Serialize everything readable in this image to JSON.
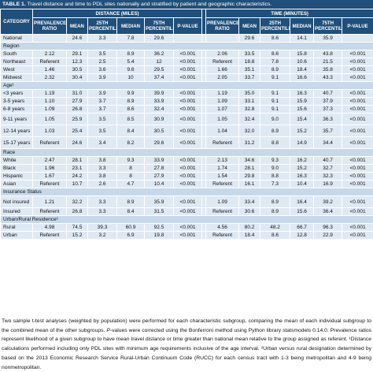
{
  "caption": {
    "label": "TABLE 1.",
    "text": " Travel distance and time to PDL sites nationally and stratified by patient and geographic characteristics."
  },
  "headers": {
    "category": "CATEGORY",
    "distance_group": "DISTANCE (MILES)",
    "time_group": "TIME (MINUTES)",
    "columns": [
      "PREVALENCE RATIO",
      "MEAN",
      "25TH PERCENTILE",
      "MEDIAN",
      "75TH PERCENTILE",
      "P-VALUE"
    ]
  },
  "rows": [
    {
      "type": "data",
      "label": "National",
      "d": [
        "",
        "24.6",
        "3.3",
        "7.8",
        "29.6",
        ""
      ],
      "t": [
        "",
        "29.6",
        "8.6",
        "14.1",
        "35.9",
        ""
      ]
    },
    {
      "type": "section",
      "label": "Region"
    },
    {
      "type": "data",
      "label": "South",
      "d": [
        "2.12",
        "29.1",
        "3.5",
        "8.9",
        "36.2",
        "<0.001"
      ],
      "t": [
        "2.06",
        "33.5",
        "8.6",
        "15.8",
        "43.8",
        "<0.001"
      ]
    },
    {
      "type": "data",
      "label": "Northeast",
      "d": [
        "Referent",
        "12.3",
        "2.5",
        "5.4",
        "12",
        "<0.001"
      ],
      "t": [
        "Referent",
        "18.8",
        "7.8",
        "10.6",
        "21.5",
        "<0.001"
      ]
    },
    {
      "type": "data",
      "label": "West",
      "d": [
        "1.46",
        "30.5",
        "3.6",
        "9.6",
        "29.5",
        "<0.001"
      ],
      "t": [
        "1.66",
        "35.1",
        "8.9",
        "18.4",
        "35.8",
        "<0.001"
      ]
    },
    {
      "type": "data",
      "label": "Midwest",
      "d": [
        "2.32",
        "30.4",
        "3.9",
        "10",
        "37.4",
        "<0.001"
      ],
      "t": [
        "2.05",
        "33.7",
        "9.1",
        "16.6",
        "43.3",
        "<0.001"
      ]
    },
    {
      "type": "section",
      "label": "Age¹"
    },
    {
      "type": "data",
      "label": "<3 years",
      "d": [
        "1.19",
        "31.0",
        "3.9",
        "9.9",
        "39.9",
        "<0.001"
      ],
      "t": [
        "1.19",
        "35.0",
        "9.1",
        "16.3",
        "40.7",
        "<0.001"
      ]
    },
    {
      "type": "data",
      "label": "3-5 years",
      "d": [
        "1.10",
        "27.9",
        "3.7",
        "8.9",
        "33.9",
        "<0.001"
      ],
      "t": [
        "1.09",
        "33.1",
        "9.1",
        "15.9",
        "37.9",
        "<0.001"
      ]
    },
    {
      "type": "data",
      "label": "6-8 years",
      "d": [
        "1.09",
        "26.8",
        "3.7",
        "8.6",
        "32.4",
        "<0.001"
      ],
      "t": [
        "1.07",
        "32.8",
        "9.1",
        "15.6",
        "37.3",
        "<0.001"
      ]
    },
    {
      "type": "data",
      "label": "9-11 years",
      "d": [
        "1.05",
        "25.9",
        "3.5",
        "8.5",
        "30.9",
        "<0.001"
      ],
      "t": [
        "1.05",
        "32.4",
        "9.0",
        "15.4",
        "36.3",
        "<0.001"
      ]
    },
    {
      "type": "data",
      "label": "12-14 years",
      "d": [
        "1.03",
        "25.4",
        "3.5",
        "8.4",
        "30.5",
        "<0.001"
      ],
      "t": [
        "1.04",
        "32.0",
        "8.9",
        "15.2",
        "35.7",
        "<0.001"
      ]
    },
    {
      "type": "data",
      "label": "15-17 years",
      "d": [
        "Referent",
        "24.6",
        "3.4",
        "8.2",
        "29.6",
        "<0.001"
      ],
      "t": [
        "Referent",
        "31.2",
        "8.8",
        "14.9",
        "34.4",
        "<0.001"
      ]
    },
    {
      "type": "section",
      "label": "Race"
    },
    {
      "type": "data",
      "label": "White",
      "d": [
        "2.47",
        "28.1",
        "3.8",
        "9.3",
        "33.9",
        "<0.001"
      ],
      "t": [
        "2.13",
        "34.6",
        "9.3",
        "16.2",
        "40.7",
        "<0.001"
      ]
    },
    {
      "type": "data",
      "label": "Black",
      "d": [
        "1.96",
        "23.1",
        "3.3",
        "8",
        "27.8",
        "<0.001"
      ],
      "t": [
        "1.74",
        "28.1",
        "9.0",
        "15.2",
        "32.7",
        "<0.001"
      ]
    },
    {
      "type": "data",
      "label": "Hispanic",
      "d": [
        "1.67",
        "24.2",
        "3.8",
        "8",
        "27.9",
        "<0.001"
      ],
      "t": [
        "1.54",
        "29.8",
        "8.8",
        "16.3",
        "32.3",
        "<0.001"
      ]
    },
    {
      "type": "data",
      "label": "Asian",
      "d": [
        "Referent",
        "10.7",
        "2.6",
        "4.7",
        "10.4",
        "<0.001"
      ],
      "t": [
        "Referent",
        "16.1",
        "7.3",
        "10.4",
        "16.9",
        "<0.001"
      ]
    },
    {
      "type": "section",
      "label": "Insurance Status"
    },
    {
      "type": "data",
      "label": "Not insured",
      "d": [
        "1.21",
        "32.2",
        "3.3",
        "8.9",
        "35.9",
        "<0.001"
      ],
      "t": [
        "1.09",
        "33.4",
        "8.9",
        "16.4",
        "39.2",
        "<0.001"
      ]
    },
    {
      "type": "data",
      "label": "Insured",
      "d": [
        "Referent",
        "26.8",
        "3.3",
        "8.4",
        "31.5",
        "<0.001"
      ],
      "t": [
        "Referent",
        "30.6",
        "8.9",
        "15.6",
        "36.4",
        "<0.001"
      ]
    },
    {
      "type": "section",
      "label": "Urban/Rural Residence²"
    },
    {
      "type": "data",
      "label": "Rural",
      "d": [
        "4.98",
        "74.5",
        "39.3",
        "60.9",
        "92.5",
        "<0.001"
      ],
      "t": [
        "4.56",
        "80.2",
        "48.2",
        "66.7",
        "96.3",
        "<0.001"
      ]
    },
    {
      "type": "data",
      "label": "Urban",
      "d": [
        "Referent",
        "15.2",
        "3.2",
        "6.9",
        "19.8",
        "<0.001"
      ],
      "t": [
        "Referent",
        "18.4",
        "8.6",
        "12.8",
        "22.9",
        "<0.001"
      ]
    }
  ],
  "footnote_html": "Two sample t-test analyses (weighted by population) were performed for each characteristic subgroup, comparing the mean of each individual subgroup to the combined mean of the other subgroups. <i>P</i>-values were corrected using the Bonferroni method using Python library statsmodels 0.14.0. Prevalence ratios represent likelihood of a given subgroup to have mean travel distance or time greater than national mean relative to the group assigned as referent. ¹Distance calculations performed including only PDL sites with minimum age requirements inclusive of the age interval. ²Urban versus rural designation determined by based on the 2013 Economic Research Service Rural-Urban Continuum Code (RUCC) for each census tract with 1-3 being metropolitan and 4-9 being nonmetropolitan.",
  "colors": {
    "header_bg": "#1f4f7a",
    "row_bg": "#dfe9f4",
    "section_bg": "#c7d8ea"
  }
}
